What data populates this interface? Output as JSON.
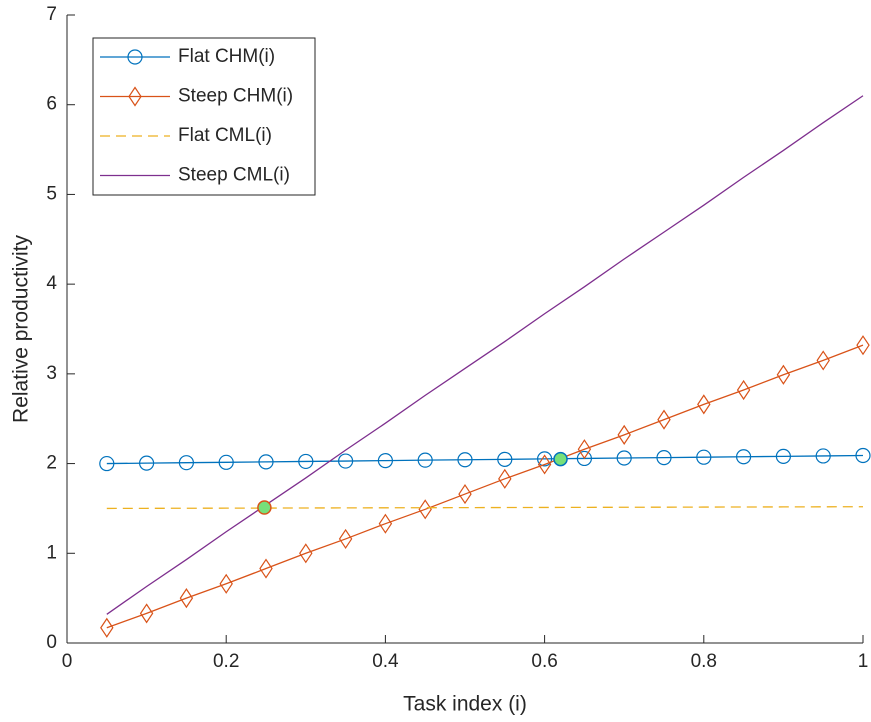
{
  "chart_data": {
    "type": "line",
    "xlabel": "Task index (i)",
    "ylabel": "Relative productivity",
    "x": [
      0.05,
      0.1,
      0.15,
      0.2,
      0.25,
      0.3,
      0.35,
      0.4,
      0.45,
      0.5,
      0.55,
      0.6,
      0.65,
      0.7,
      0.75,
      0.8,
      0.85,
      0.9,
      0.95,
      1
    ],
    "series": [
      {
        "name": "Flat CHM(i)",
        "color": "#0072BD",
        "marker": "circle",
        "dash": false,
        "values": [
          2.0,
          2.005,
          2.01,
          2.014,
          2.019,
          2.024,
          2.028,
          2.033,
          2.038,
          2.043,
          2.047,
          2.052,
          2.057,
          2.062,
          2.066,
          2.071,
          2.076,
          2.08,
          2.085,
          2.09
        ]
      },
      {
        "name": "Steep CHM(i)",
        "color": "#D95319",
        "marker": "diamond",
        "dash": false,
        "values": [
          0.17,
          0.33,
          0.5,
          0.66,
          0.83,
          1.0,
          1.16,
          1.33,
          1.49,
          1.66,
          1.83,
          1.99,
          2.16,
          2.32,
          2.49,
          2.66,
          2.82,
          2.99,
          3.15,
          3.32
        ]
      },
      {
        "name": "Flat CML(i)",
        "color": "#EDB120",
        "marker": "none",
        "dash": true,
        "values": [
          1.5,
          1.501,
          1.502,
          1.503,
          1.504,
          1.505,
          1.506,
          1.507,
          1.508,
          1.509,
          1.51,
          1.511,
          1.512,
          1.513,
          1.514,
          1.515,
          1.516,
          1.517,
          1.518,
          1.519
        ]
      },
      {
        "name": "Steep CML(i)",
        "color": "#7E2F8E",
        "marker": "none",
        "dash": false,
        "values": [
          0.32,
          0.63,
          0.93,
          1.24,
          1.54,
          1.84,
          2.15,
          2.45,
          2.76,
          3.06,
          3.36,
          3.67,
          3.97,
          4.28,
          4.58,
          4.88,
          5.19,
          5.49,
          5.8,
          6.1
        ]
      }
    ],
    "highlights": {
      "x": [
        0.248,
        0.62
      ],
      "y": [
        1.51,
        2.05
      ],
      "fill": "#77E07A",
      "edgecolors": [
        "#D95319",
        "#0072BD"
      ]
    },
    "xlim": [
      0,
      1
    ],
    "xticks": [
      0,
      0.2,
      0.4,
      0.6,
      0.8,
      1
    ],
    "ylim": [
      0,
      7
    ],
    "yticks": [
      0,
      1,
      2,
      3,
      4,
      5,
      6,
      7
    ],
    "legend": "upper-left",
    "grid": false
  }
}
